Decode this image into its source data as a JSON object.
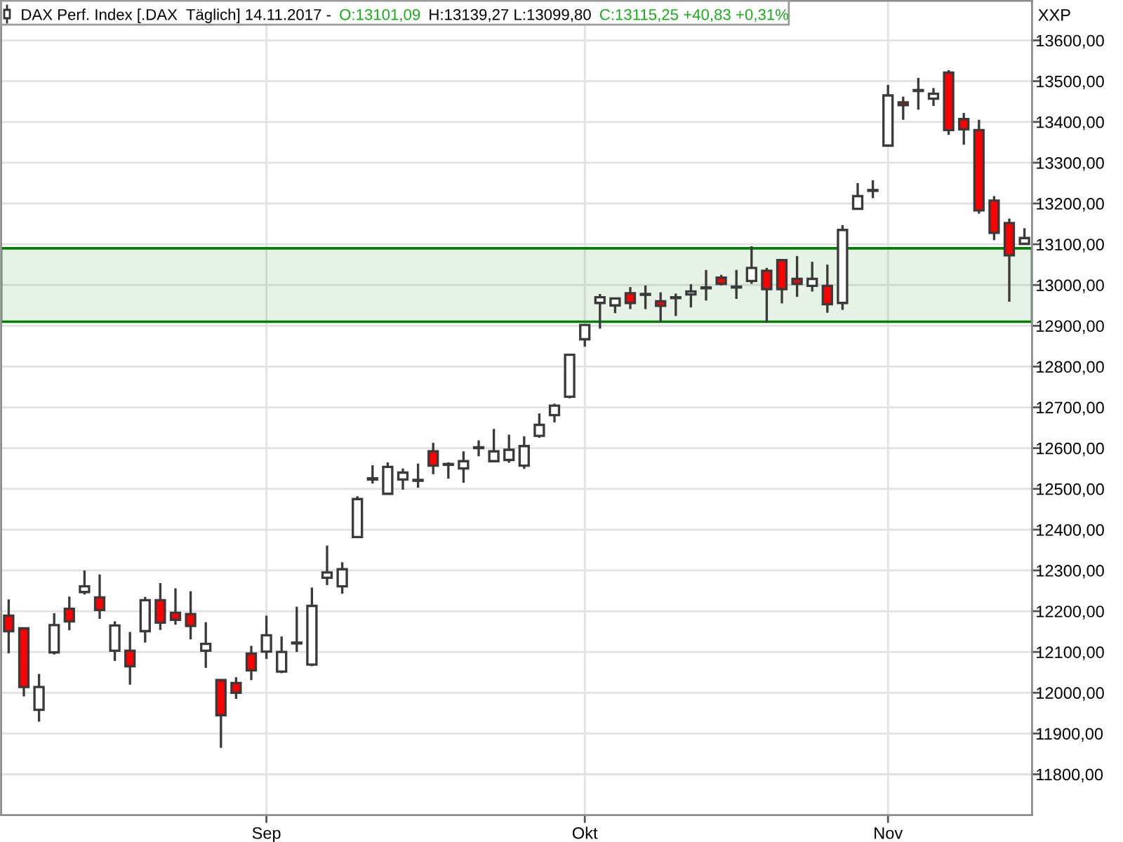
{
  "chart_data": {
    "type": "candlestick",
    "title": "DAX Perf. Index [.DAX  Täglich] 14.11.2017 -",
    "annotations": [
      "O:13101,09",
      "H:13139,27 L:13099,80",
      "C:13115,25 +40,83 +0,31%"
    ],
    "ylabel": "XXP",
    "categories": [
      null,
      null,
      null,
      null,
      null,
      null,
      null,
      null,
      null,
      null,
      null,
      null,
      null,
      null,
      null,
      null,
      null,
      "Sep",
      null,
      null,
      null,
      null,
      null,
      null,
      null,
      null,
      null,
      null,
      null,
      null,
      null,
      null,
      null,
      null,
      null,
      null,
      null,
      null,
      "Okt",
      null,
      null,
      null,
      null,
      null,
      null,
      null,
      null,
      null,
      null,
      null,
      null,
      null,
      null,
      null,
      null,
      null,
      null,
      null,
      "Nov",
      null,
      null,
      null,
      null,
      null,
      null,
      null,
      null,
      null
    ],
    "ohlc": [
      [
        12189,
        12229,
        12097,
        12151
      ],
      [
        12158,
        12158,
        11991,
        12014
      ],
      [
        11958,
        12046,
        11929,
        12014
      ],
      [
        12099,
        12195,
        12094,
        12166
      ],
      [
        12206,
        12236,
        12153,
        12175
      ],
      [
        12247,
        12300,
        12241,
        12261
      ],
      [
        12234,
        12290,
        12181,
        12203
      ],
      [
        12103,
        12175,
        12078,
        12165
      ],
      [
        12103,
        12149,
        12020,
        12065
      ],
      [
        12151,
        12235,
        12123,
        12227
      ],
      [
        12227,
        12269,
        12154,
        12172
      ],
      [
        12196,
        12256,
        12167,
        12179
      ],
      [
        12193,
        12249,
        12131,
        12164
      ],
      [
        12103,
        12173,
        12061,
        12120
      ],
      [
        12031,
        12031,
        11865,
        11945
      ],
      [
        12024,
        12038,
        11985,
        12000
      ],
      [
        12096,
        12115,
        12031,
        12055
      ],
      [
        12101,
        12189,
        12083,
        12141
      ],
      [
        12052,
        12138,
        12048,
        12100
      ],
      [
        12121,
        12211,
        12100,
        12123
      ],
      [
        12069,
        12258,
        12065,
        12213
      ],
      [
        12282,
        12361,
        12264,
        12295
      ],
      [
        12261,
        12320,
        12243,
        12303
      ],
      [
        12382,
        12482,
        12380,
        12475
      ],
      [
        12523,
        12558,
        12513,
        12526
      ],
      [
        12488,
        12565,
        12486,
        12554
      ],
      [
        12523,
        12550,
        12498,
        12540
      ],
      [
        12520,
        12562,
        12503,
        12522
      ],
      [
        12592,
        12613,
        12536,
        12557
      ],
      [
        12559,
        12565,
        12525,
        12561
      ],
      [
        12550,
        12592,
        12515,
        12568
      ],
      [
        12600,
        12619,
        12580,
        12602
      ],
      [
        12568,
        12647,
        12566,
        12592
      ],
      [
        12571,
        12633,
        12564,
        12596
      ],
      [
        12557,
        12629,
        12549,
        12605
      ],
      [
        12630,
        12685,
        12625,
        12657
      ],
      [
        12681,
        12709,
        12663,
        12704
      ],
      [
        12726,
        12830,
        12722,
        12829
      ],
      [
        12867,
        12903,
        12849,
        12902
      ],
      [
        12956,
        12978,
        12893,
        12970
      ],
      [
        12950,
        12969,
        12931,
        12967
      ],
      [
        12980,
        12995,
        12941,
        12956
      ],
      [
        12976,
        12999,
        12941,
        12978
      ],
      [
        12960,
        12982,
        12909,
        12949
      ],
      [
        12968,
        12979,
        12924,
        12970
      ],
      [
        12977,
        13002,
        12945,
        12984
      ],
      [
        12992,
        13037,
        12962,
        12994
      ],
      [
        13018,
        13025,
        12999,
        13003
      ],
      [
        12994,
        13037,
        12966,
        12996
      ],
      [
        13010,
        13095,
        13003,
        13042
      ],
      [
        13035,
        13042,
        12908,
        12990
      ],
      [
        13061,
        13064,
        12955,
        12990
      ],
      [
        13015,
        13071,
        12971,
        13003
      ],
      [
        12998,
        13057,
        12984,
        13015
      ],
      [
        12998,
        13050,
        12932,
        12953
      ],
      [
        12956,
        13147,
        12939,
        13135
      ],
      [
        13187,
        13250,
        13186,
        13218
      ],
      [
        13231,
        13257,
        13213,
        13233
      ],
      [
        13342,
        13491,
        13341,
        13465
      ],
      [
        13448,
        13462,
        13405,
        13441
      ],
      [
        13476,
        13508,
        13430,
        13478
      ],
      [
        13457,
        13483,
        13439,
        13469
      ],
      [
        13521,
        13527,
        13368,
        13380
      ],
      [
        13407,
        13422,
        13344,
        13382
      ],
      [
        13380,
        13405,
        13175,
        13183
      ],
      [
        13207,
        13218,
        13110,
        13128
      ],
      [
        13152,
        13163,
        12959,
        13073
      ],
      [
        13101.09,
        13139.27,
        13099.8,
        13115.25
      ]
    ],
    "colors": [
      "#ff0000",
      "#ff0000",
      "#ffffff",
      "#ffffff",
      "#ff0000",
      "#ffffff",
      "#ff0000",
      "#ffffff",
      "#ff0000",
      "#ffffff",
      "#ff0000",
      "#ff0000",
      "#ff0000",
      "#ffffff",
      "#ff0000",
      "#ff0000",
      "#ff0000",
      "#ffffff",
      "#ffffff",
      "#ffffff",
      "#ffffff",
      "#ffffff",
      "#ffffff",
      "#ffffff",
      "#ffffff",
      "#ffffff",
      "#ffffff",
      "#ffffff",
      "#ff0000",
      "#ffffff",
      "#ffffff",
      "#ffffff",
      "#ffffff",
      "#ffffff",
      "#ffffff",
      "#ffffff",
      "#ffffff",
      "#ffffff",
      "#ffffff",
      "#ffffff",
      "#ffffff",
      "#ff0000",
      "#ffffff",
      "#ff0000",
      "#ffffff",
      "#ffffff",
      "#ffffff",
      "#ff0000",
      "#ffffff",
      "#ffffff",
      "#ff0000",
      "#ff0000",
      "#ff0000",
      "#ffffff",
      "#ff0000",
      "#ffffff",
      "#ffffff",
      "#ffffff",
      "#ffffff",
      "#ff0000",
      "#ffffff",
      "#ffffff",
      "#ff0000",
      "#ff0000",
      "#ff0000",
      "#ff0000",
      "#ff0000",
      "#ffffff"
    ],
    "ylim": [
      11700,
      13697
    ],
    "yticks": [
      {
        "value": 11800,
        "label": "11800,00"
      },
      {
        "value": 11900,
        "label": "11900,00"
      },
      {
        "value": 12000,
        "label": "12000,00"
      },
      {
        "value": 12100,
        "label": "12100,00"
      },
      {
        "value": 12200,
        "label": "12200,00"
      },
      {
        "value": 12300,
        "label": "12300,00"
      },
      {
        "value": 12400,
        "label": "12400,00"
      },
      {
        "value": 12500,
        "label": "12500,00"
      },
      {
        "value": 12600,
        "label": "12600,00"
      },
      {
        "value": 12700,
        "label": "12700,00"
      },
      {
        "value": 12800,
        "label": "12800,00"
      },
      {
        "value": 12900,
        "label": "12900,00"
      },
      {
        "value": 13000,
        "label": "13000,00"
      },
      {
        "value": 13100,
        "label": "13100,00"
      },
      {
        "value": 13200,
        "label": "13200,00"
      },
      {
        "value": 13300,
        "label": "13300,00"
      },
      {
        "value": 13400,
        "label": "13400,00"
      },
      {
        "value": 13500,
        "label": "13500,00"
      },
      {
        "value": 13600,
        "label": "13600,00"
      }
    ],
    "bands": [
      {
        "axis": "y",
        "from": 12910,
        "to": 13090,
        "color": "#008000"
      }
    ],
    "grid": true
  }
}
